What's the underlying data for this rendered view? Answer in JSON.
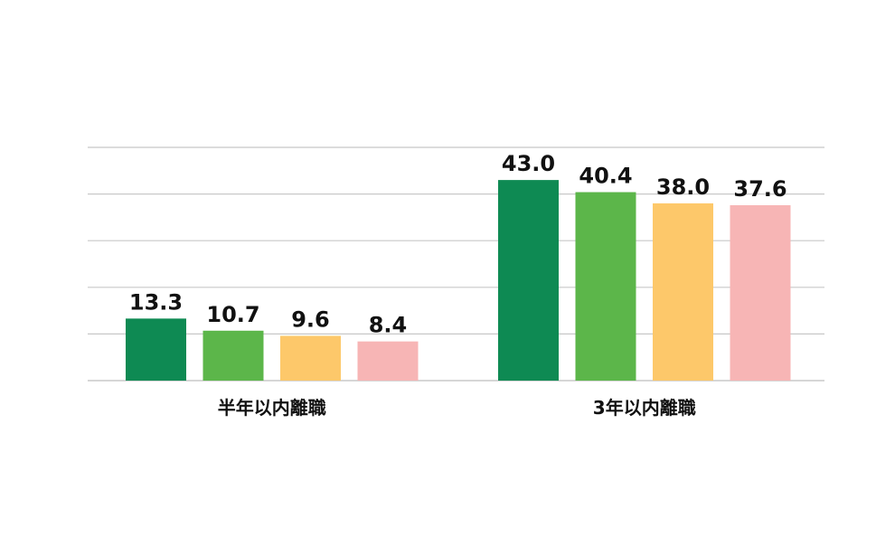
{
  "chart_data": {
    "type": "bar",
    "categories": [
      "半年以内離職",
      "3年以内離職"
    ],
    "series": [
      {
        "values": [
          13.3,
          43.0
        ],
        "value_labels": [
          "13.3",
          "43.0"
        ],
        "color": "#0e8a53"
      },
      {
        "values": [
          10.7,
          40.4
        ],
        "value_labels": [
          "10.7",
          "40.4"
        ],
        "color": "#5cb64a"
      },
      {
        "values": [
          9.6,
          38.0
        ],
        "value_labels": [
          "9.6",
          "38.0"
        ],
        "color": "#fdc86a"
      },
      {
        "values": [
          8.4,
          37.6
        ],
        "value_labels": [
          "8.4",
          "37.6"
        ],
        "color": "#f7b5b5"
      }
    ],
    "ylim": [
      0,
      50
    ],
    "gridlines": [
      0,
      10,
      20,
      30,
      40,
      50
    ],
    "grid": true,
    "legend": "none",
    "gridline_color": "#c8c8c8"
  }
}
